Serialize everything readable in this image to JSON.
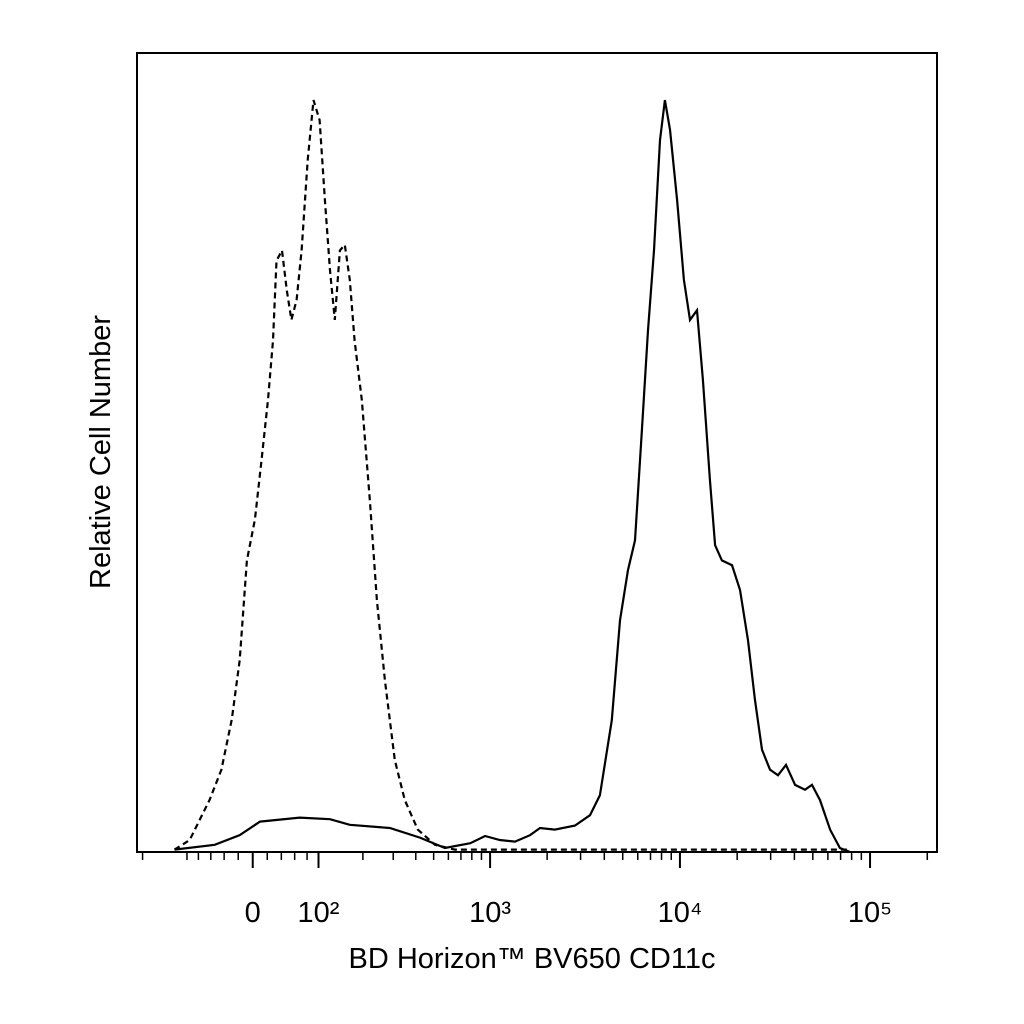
{
  "chart_data": {
    "type": "histogram-overlay",
    "x_label": "BD Horizon™ BV650 CD11c",
    "y_label": "Relative Cell Number",
    "xscale": "biexponential",
    "xlim": [
      -216,
      225000
    ],
    "ylim": [
      0,
      100
    ],
    "xticks": [
      0,
      {
        "value": 100,
        "label": "10²"
      },
      {
        "value": 1000,
        "label": "10³"
      },
      {
        "value": 10000,
        "label": "10⁴"
      },
      {
        "value": 100000,
        "label": "10⁵"
      }
    ],
    "xminorticks": [
      -200,
      -100,
      -80,
      -60,
      -40,
      -20,
      20,
      40,
      60,
      80,
      200,
      300,
      400,
      500,
      600,
      700,
      800,
      900,
      2000,
      3000,
      4000,
      5000,
      6000,
      7000,
      8000,
      9000,
      20000,
      30000,
      40000,
      50000,
      60000,
      70000,
      80000,
      90000,
      200000
    ],
    "series": [
      {
        "color": "#000000",
        "line_style": "dashed",
        "x": [
          -124,
          -95,
          -78,
          -62,
          -44,
          -29,
          -18,
          -8,
          3,
          12,
          21,
          28,
          33,
          41,
          48,
          55,
          63,
          71,
          81,
          91,
          102,
          112,
          122,
          132,
          143,
          154,
          166,
          178,
          197,
          220,
          242,
          269,
          306,
          348,
          410,
          508,
          649,
          1126,
          12757,
          78500
        ],
        "values": [
          0.3,
          1.5,
          4,
          6.5,
          10.3,
          16.6,
          24,
          36.5,
          41.6,
          49,
          56.6,
          64,
          74,
          75.3,
          70.3,
          66.6,
          69.1,
          75.3,
          86.6,
          94.1,
          91.6,
          81.6,
          72.8,
          66.6,
          75.3,
          76,
          71.6,
          64,
          56.6,
          44.1,
          31.5,
          21.5,
          11.5,
          6.5,
          2.8,
          0.9,
          0.3,
          0.3,
          0.3,
          0.3
        ]
      },
      {
        "color": "#000000",
        "line_style": "solid",
        "x": [
          -124,
          -54,
          -18,
          10,
          68,
          122,
          166,
          287,
          421,
          575,
          785,
          941,
          1126,
          1354,
          1625,
          1835,
          2196,
          2802,
          3362,
          3792,
          4381,
          4839,
          5332,
          5802,
          6305,
          6792,
          7307,
          7850,
          8332,
          8869,
          9656,
          10494,
          11292,
          12299,
          13205,
          14382,
          15305,
          16629,
          18786,
          20693,
          22793,
          24819,
          27027,
          29772,
          32794,
          36128,
          40350,
          45478,
          49525,
          54562,
          61637,
          69448,
          78504
        ],
        "values": [
          0.3,
          0.9,
          2.1,
          3.8,
          4.3,
          4.1,
          3.4,
          3,
          1.8,
          0.5,
          1.1,
          2,
          1.5,
          1.3,
          2.1,
          3,
          2.8,
          3.3,
          4.6,
          7.1,
          16.5,
          29,
          35.3,
          39,
          52.8,
          65.3,
          75.3,
          89.1,
          94.1,
          90.4,
          81.6,
          71.6,
          66.6,
          67.8,
          59.1,
          46.6,
          38.4,
          36.5,
          35.9,
          32.8,
          26.5,
          19,
          12.8,
          10.3,
          9.6,
          10.9,
          8.4,
          7.8,
          8.4,
          6.5,
          2.8,
          0.5,
          0
        ]
      }
    ]
  }
}
